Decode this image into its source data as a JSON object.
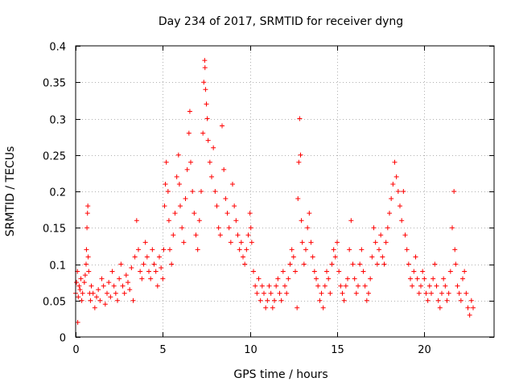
{
  "chart_data": {
    "type": "scatter",
    "title": "Day 234 of 2017, SRMTID for receiver dyng",
    "xlabel": "GPS time / hours",
    "ylabel": "SRMTID / TECUs",
    "xlim": [
      0,
      24
    ],
    "ylim": [
      0,
      0.4
    ],
    "xticks": [
      0,
      5,
      10,
      15,
      20
    ],
    "xtick_labels": [
      "0",
      "5",
      "10",
      "15",
      "20"
    ],
    "yticks": [
      0,
      0.05,
      0.1,
      0.15,
      0.2,
      0.25,
      0.3,
      0.35,
      0.4
    ],
    "ytick_labels": [
      "0",
      "0.05",
      "0.1",
      "0.15",
      "0.2",
      "0.25",
      "0.3",
      "0.35",
      "0.4"
    ],
    "grid": true,
    "marker": "+",
    "color": "#ff0000",
    "series": [
      {
        "name": "SRMTID",
        "points": [
          [
            0.0,
            0.06
          ],
          [
            0.05,
            0.075
          ],
          [
            0.1,
            0.09
          ],
          [
            0.12,
            0.02
          ],
          [
            0.15,
            0.055
          ],
          [
            0.2,
            0.07
          ],
          [
            0.25,
            0.065
          ],
          [
            0.3,
            0.08
          ],
          [
            0.35,
            0.05
          ],
          [
            0.4,
            0.06
          ],
          [
            0.5,
            0.075
          ],
          [
            0.55,
            0.085
          ],
          [
            0.6,
            0.1
          ],
          [
            0.62,
            0.12
          ],
          [
            0.65,
            0.15
          ],
          [
            0.68,
            0.17
          ],
          [
            0.7,
            0.18
          ],
          [
            0.72,
            0.11
          ],
          [
            0.75,
            0.09
          ],
          [
            0.8,
            0.06
          ],
          [
            0.85,
            0.05
          ],
          [
            0.9,
            0.07
          ],
          [
            1.0,
            0.06
          ],
          [
            1.1,
            0.04
          ],
          [
            1.2,
            0.055
          ],
          [
            1.3,
            0.065
          ],
          [
            1.4,
            0.05
          ],
          [
            1.5,
            0.08
          ],
          [
            1.6,
            0.07
          ],
          [
            1.7,
            0.045
          ],
          [
            1.8,
            0.06
          ],
          [
            1.9,
            0.075
          ],
          [
            2.0,
            0.055
          ],
          [
            2.1,
            0.09
          ],
          [
            2.2,
            0.07
          ],
          [
            2.3,
            0.06
          ],
          [
            2.4,
            0.05
          ],
          [
            2.5,
            0.08
          ],
          [
            2.6,
            0.1
          ],
          [
            2.7,
            0.07
          ],
          [
            2.8,
            0.06
          ],
          [
            2.9,
            0.085
          ],
          [
            3.0,
            0.075
          ],
          [
            3.1,
            0.065
          ],
          [
            3.2,
            0.095
          ],
          [
            3.3,
            0.05
          ],
          [
            3.4,
            0.11
          ],
          [
            3.5,
            0.16
          ],
          [
            3.6,
            0.12
          ],
          [
            3.7,
            0.09
          ],
          [
            3.8,
            0.08
          ],
          [
            3.9,
            0.1
          ],
          [
            4.0,
            0.13
          ],
          [
            4.1,
            0.11
          ],
          [
            4.2,
            0.09
          ],
          [
            4.3,
            0.08
          ],
          [
            4.4,
            0.12
          ],
          [
            4.5,
            0.1
          ],
          [
            4.6,
            0.09
          ],
          [
            4.7,
            0.07
          ],
          [
            4.8,
            0.11
          ],
          [
            4.9,
            0.095
          ],
          [
            5.0,
            0.08
          ],
          [
            5.05,
            0.12
          ],
          [
            5.1,
            0.18
          ],
          [
            5.15,
            0.21
          ],
          [
            5.2,
            0.24
          ],
          [
            5.3,
            0.2
          ],
          [
            5.35,
            0.16
          ],
          [
            5.4,
            0.12
          ],
          [
            5.5,
            0.1
          ],
          [
            5.6,
            0.14
          ],
          [
            5.7,
            0.17
          ],
          [
            5.8,
            0.22
          ],
          [
            5.9,
            0.25
          ],
          [
            5.95,
            0.21
          ],
          [
            6.0,
            0.18
          ],
          [
            6.1,
            0.15
          ],
          [
            6.2,
            0.13
          ],
          [
            6.3,
            0.19
          ],
          [
            6.4,
            0.23
          ],
          [
            6.5,
            0.28
          ],
          [
            6.55,
            0.31
          ],
          [
            6.6,
            0.24
          ],
          [
            6.7,
            0.2
          ],
          [
            6.8,
            0.17
          ],
          [
            6.9,
            0.14
          ],
          [
            7.0,
            0.12
          ],
          [
            7.1,
            0.16
          ],
          [
            7.2,
            0.2
          ],
          [
            7.3,
            0.28
          ],
          [
            7.35,
            0.35
          ],
          [
            7.4,
            0.38
          ],
          [
            7.42,
            0.37
          ],
          [
            7.45,
            0.34
          ],
          [
            7.5,
            0.32
          ],
          [
            7.55,
            0.3
          ],
          [
            7.6,
            0.27
          ],
          [
            7.7,
            0.24
          ],
          [
            7.8,
            0.22
          ],
          [
            7.9,
            0.26
          ],
          [
            8.0,
            0.2
          ],
          [
            8.1,
            0.18
          ],
          [
            8.2,
            0.15
          ],
          [
            8.3,
            0.14
          ],
          [
            8.4,
            0.29
          ],
          [
            8.5,
            0.23
          ],
          [
            8.6,
            0.19
          ],
          [
            8.7,
            0.17
          ],
          [
            8.8,
            0.15
          ],
          [
            8.9,
            0.13
          ],
          [
            9.0,
            0.21
          ],
          [
            9.1,
            0.18
          ],
          [
            9.2,
            0.16
          ],
          [
            9.3,
            0.14
          ],
          [
            9.4,
            0.12
          ],
          [
            9.5,
            0.13
          ],
          [
            9.6,
            0.11
          ],
          [
            9.7,
            0.1
          ],
          [
            9.8,
            0.12
          ],
          [
            9.9,
            0.14
          ],
          [
            10.0,
            0.17
          ],
          [
            10.05,
            0.15
          ],
          [
            10.1,
            0.13
          ],
          [
            10.2,
            0.09
          ],
          [
            10.3,
            0.07
          ],
          [
            10.4,
            0.06
          ],
          [
            10.5,
            0.08
          ],
          [
            10.6,
            0.05
          ],
          [
            10.7,
            0.07
          ],
          [
            10.8,
            0.06
          ],
          [
            10.9,
            0.04
          ],
          [
            11.0,
            0.05
          ],
          [
            11.1,
            0.07
          ],
          [
            11.2,
            0.06
          ],
          [
            11.3,
            0.04
          ],
          [
            11.4,
            0.05
          ],
          [
            11.5,
            0.07
          ],
          [
            11.6,
            0.08
          ],
          [
            11.7,
            0.06
          ],
          [
            11.8,
            0.05
          ],
          [
            11.9,
            0.09
          ],
          [
            12.0,
            0.07
          ],
          [
            12.1,
            0.06
          ],
          [
            12.2,
            0.08
          ],
          [
            12.3,
            0.1
          ],
          [
            12.4,
            0.12
          ],
          [
            12.5,
            0.11
          ],
          [
            12.6,
            0.09
          ],
          [
            12.7,
            0.04
          ],
          [
            12.75,
            0.19
          ],
          [
            12.8,
            0.24
          ],
          [
            12.85,
            0.3
          ],
          [
            12.9,
            0.25
          ],
          [
            12.95,
            0.16
          ],
          [
            13.0,
            0.13
          ],
          [
            13.1,
            0.1
          ],
          [
            13.2,
            0.12
          ],
          [
            13.3,
            0.15
          ],
          [
            13.4,
            0.17
          ],
          [
            13.5,
            0.13
          ],
          [
            13.6,
            0.11
          ],
          [
            13.7,
            0.09
          ],
          [
            13.8,
            0.08
          ],
          [
            13.9,
            0.07
          ],
          [
            14.0,
            0.05
          ],
          [
            14.1,
            0.06
          ],
          [
            14.2,
            0.04
          ],
          [
            14.3,
            0.07
          ],
          [
            14.4,
            0.09
          ],
          [
            14.5,
            0.08
          ],
          [
            14.6,
            0.06
          ],
          [
            14.7,
            0.1
          ],
          [
            14.8,
            0.12
          ],
          [
            14.9,
            0.11
          ],
          [
            15.0,
            0.13
          ],
          [
            15.1,
            0.09
          ],
          [
            15.2,
            0.07
          ],
          [
            15.3,
            0.06
          ],
          [
            15.4,
            0.05
          ],
          [
            15.5,
            0.07
          ],
          [
            15.6,
            0.08
          ],
          [
            15.7,
            0.12
          ],
          [
            15.8,
            0.16
          ],
          [
            15.9,
            0.1
          ],
          [
            16.0,
            0.08
          ],
          [
            16.1,
            0.06
          ],
          [
            16.2,
            0.07
          ],
          [
            16.3,
            0.1
          ],
          [
            16.4,
            0.12
          ],
          [
            16.5,
            0.09
          ],
          [
            16.6,
            0.07
          ],
          [
            16.7,
            0.05
          ],
          [
            16.8,
            0.06
          ],
          [
            16.9,
            0.08
          ],
          [
            17.0,
            0.11
          ],
          [
            17.1,
            0.15
          ],
          [
            17.2,
            0.13
          ],
          [
            17.3,
            0.1
          ],
          [
            17.4,
            0.12
          ],
          [
            17.5,
            0.14
          ],
          [
            17.6,
            0.11
          ],
          [
            17.7,
            0.1
          ],
          [
            17.8,
            0.13
          ],
          [
            17.9,
            0.15
          ],
          [
            18.0,
            0.17
          ],
          [
            18.1,
            0.19
          ],
          [
            18.2,
            0.21
          ],
          [
            18.3,
            0.24
          ],
          [
            18.4,
            0.22
          ],
          [
            18.5,
            0.2
          ],
          [
            18.6,
            0.18
          ],
          [
            18.7,
            0.16
          ],
          [
            18.8,
            0.2
          ],
          [
            18.9,
            0.14
          ],
          [
            19.0,
            0.12
          ],
          [
            19.1,
            0.1
          ],
          [
            19.2,
            0.08
          ],
          [
            19.3,
            0.07
          ],
          [
            19.4,
            0.09
          ],
          [
            19.5,
            0.11
          ],
          [
            19.6,
            0.08
          ],
          [
            19.7,
            0.06
          ],
          [
            19.8,
            0.07
          ],
          [
            19.9,
            0.09
          ],
          [
            20.0,
            0.08
          ],
          [
            20.1,
            0.06
          ],
          [
            20.2,
            0.05
          ],
          [
            20.3,
            0.07
          ],
          [
            20.4,
            0.06
          ],
          [
            20.5,
            0.08
          ],
          [
            20.6,
            0.1
          ],
          [
            20.7,
            0.07
          ],
          [
            20.8,
            0.05
          ],
          [
            20.9,
            0.04
          ],
          [
            21.0,
            0.06
          ],
          [
            21.1,
            0.08
          ],
          [
            21.2,
            0.07
          ],
          [
            21.3,
            0.05
          ],
          [
            21.4,
            0.06
          ],
          [
            21.5,
            0.09
          ],
          [
            21.6,
            0.15
          ],
          [
            21.7,
            0.2
          ],
          [
            21.75,
            0.12
          ],
          [
            21.8,
            0.1
          ],
          [
            21.9,
            0.07
          ],
          [
            22.0,
            0.06
          ],
          [
            22.1,
            0.05
          ],
          [
            22.2,
            0.08
          ],
          [
            22.3,
            0.09
          ],
          [
            22.4,
            0.06
          ],
          [
            22.5,
            0.04
          ],
          [
            22.6,
            0.03
          ],
          [
            22.7,
            0.05
          ],
          [
            22.8,
            0.04
          ]
        ]
      }
    ]
  }
}
